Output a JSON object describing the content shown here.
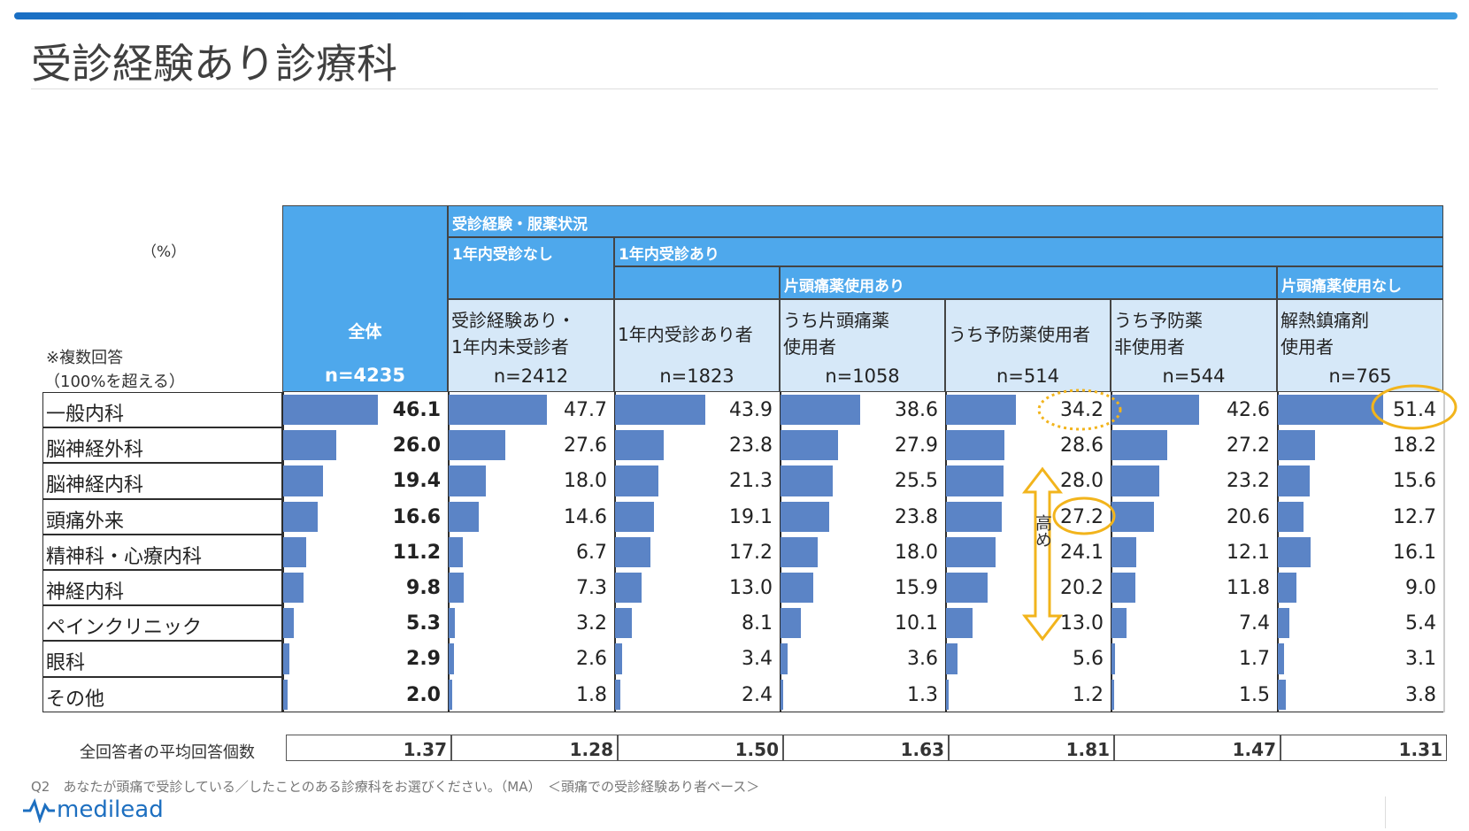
{
  "header": {
    "title": "受診経験あり診療科"
  },
  "table": {
    "unit": "（%）",
    "note_lines": [
      "※複数回答",
      "（100%を超える）"
    ],
    "group_header": "受診経験・服薬状況",
    "subgroups": [
      "1年内受診なし",
      "1年内受診あり"
    ],
    "subsubgroups": [
      "片頭痛薬使用あり",
      "片頭痛薬使用なし"
    ],
    "columns": [
      {
        "label": [
          "全体"
        ],
        "n": "n=4235"
      },
      {
        "label": [
          "受診経験あり・",
          "1年内未受診者"
        ],
        "n": "n=2412"
      },
      {
        "label": [
          "1年内受診あり者"
        ],
        "n": "n=1823"
      },
      {
        "label": [
          "うち片頭痛薬",
          "使用者"
        ],
        "n": "n=1058"
      },
      {
        "label": [
          "うち予防薬使用者"
        ],
        "n": "n=514"
      },
      {
        "label": [
          "うち予防薬",
          "非使用者"
        ],
        "n": "n=544"
      },
      {
        "label": [
          "解熱鎮痛剤",
          "使用者"
        ],
        "n": "n=765"
      }
    ],
    "rows": [
      {
        "label": "一般内科",
        "values": [
          46.1,
          47.7,
          43.9,
          38.6,
          34.2,
          42.6,
          51.4
        ],
        "value_labels": [
          "46.1",
          "47.7",
          "43.9",
          "38.6",
          "34.2",
          "42.6",
          "51.4"
        ]
      },
      {
        "label": "脳神経外科",
        "values": [
          26,
          27.6,
          23.8,
          27.9,
          28.6,
          27.2,
          18.2
        ],
        "value_labels": [
          "26.0",
          "27.6",
          "23.8",
          "27.9",
          "28.6",
          "27.2",
          "18.2"
        ]
      },
      {
        "label": "脳神経内科",
        "values": [
          19.4,
          18,
          21.3,
          25.5,
          28,
          23.2,
          15.6
        ],
        "value_labels": [
          "19.4",
          "18.0",
          "21.3",
          "25.5",
          "28.0",
          "23.2",
          "15.6"
        ]
      },
      {
        "label": "頭痛外来",
        "values": [
          16.6,
          14.6,
          19.1,
          23.8,
          27.2,
          20.6,
          12.7
        ],
        "value_labels": [
          "16.6",
          "14.6",
          "19.1",
          "23.8",
          "27.2",
          "20.6",
          "12.7"
        ]
      },
      {
        "label": "精神科・心療内科",
        "values": [
          11.2,
          6.7,
          17.2,
          18,
          24.1,
          12.1,
          16.1
        ],
        "value_labels": [
          "11.2",
          "6.7",
          "17.2",
          "18.0",
          "24.1",
          "12.1",
          "16.1"
        ]
      },
      {
        "label": "神経内科",
        "values": [
          9.8,
          7.3,
          13,
          15.9,
          20.2,
          11.8,
          9
        ],
        "value_labels": [
          "9.8",
          "7.3",
          "13.0",
          "15.9",
          "20.2",
          "11.8",
          "9.0"
        ]
      },
      {
        "label": "ペインクリニック",
        "values": [
          5.3,
          3.2,
          8.1,
          10.1,
          13,
          7.4,
          5.4
        ],
        "value_labels": [
          "5.3",
          "3.2",
          "8.1",
          "10.1",
          "13.0",
          "7.4",
          "5.4"
        ]
      },
      {
        "label": "眼科",
        "values": [
          2.9,
          2.6,
          3.4,
          3.6,
          5.6,
          1.7,
          3.1
        ],
        "value_labels": [
          "2.9",
          "2.6",
          "3.4",
          "3.6",
          "5.6",
          "1.7",
          "3.1"
        ]
      },
      {
        "label": "その他",
        "values": [
          2,
          1.8,
          2.4,
          1.3,
          1.2,
          1.5,
          3.8
        ],
        "value_labels": [
          "2.0",
          "1.8",
          "2.4",
          "1.3",
          "1.2",
          "1.5",
          "3.8"
        ]
      }
    ],
    "average": {
      "label": "全回答者の平均回答個数",
      "values": [
        "1.37",
        "1.28",
        "1.50",
        "1.63",
        "1.81",
        "1.47",
        "1.31"
      ]
    }
  },
  "annotations": {
    "arrow_label": "高め"
  },
  "footer": {
    "question": "Q2　あなたが頭痛で受診している／したことのある診療科をお選びください。（MA）　＜頭痛での受診経験あり者ベース＞",
    "logo": "medilead"
  }
}
